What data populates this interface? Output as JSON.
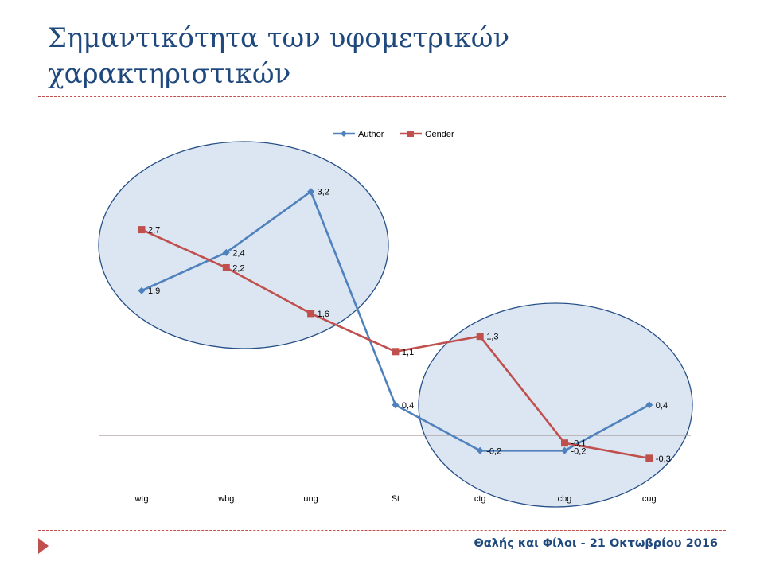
{
  "slide": {
    "title": "Σημαντικότητα των υφομετρικών χαρακτηριστικών",
    "footer": "Θαλής και Φίλοι - 21 Οκτωβρίου 2016"
  },
  "colors": {
    "title": "#1f497d",
    "accent": "#c0504d",
    "author": "#4f81bd",
    "gender": "#c0504d",
    "ellipse_fill": "#dce6f2",
    "ellipse_stroke": "#254f86"
  },
  "chart_data": {
    "type": "line",
    "categories": [
      "wtg",
      "wbg",
      "ung",
      "St",
      "ctg",
      "cbg",
      "cug"
    ],
    "series": [
      {
        "name": "Author",
        "values": [
          1.9,
          2.4,
          3.2,
          0.4,
          -0.2,
          -0.2,
          0.4
        ],
        "labels": [
          "1,9",
          "2,4",
          "3,2",
          "0,4",
          "-0,2",
          "-0,2",
          "0,4"
        ],
        "marker": "diamond"
      },
      {
        "name": "Gender",
        "values": [
          2.7,
          2.2,
          1.6,
          1.1,
          1.3,
          -0.1,
          -0.3
        ],
        "labels": [
          "2,7",
          "2,2",
          "1,6",
          "1,1",
          "1,3",
          "-0,1",
          "-0,3"
        ],
        "marker": "square"
      }
    ],
    "ylim": [
      -0.5,
      3.5
    ],
    "legend": "top",
    "grid": false,
    "highlights": [
      {
        "from_category": "wtg",
        "to_category": "ung"
      },
      {
        "from_category": "ctg",
        "to_category": "cug"
      }
    ]
  }
}
